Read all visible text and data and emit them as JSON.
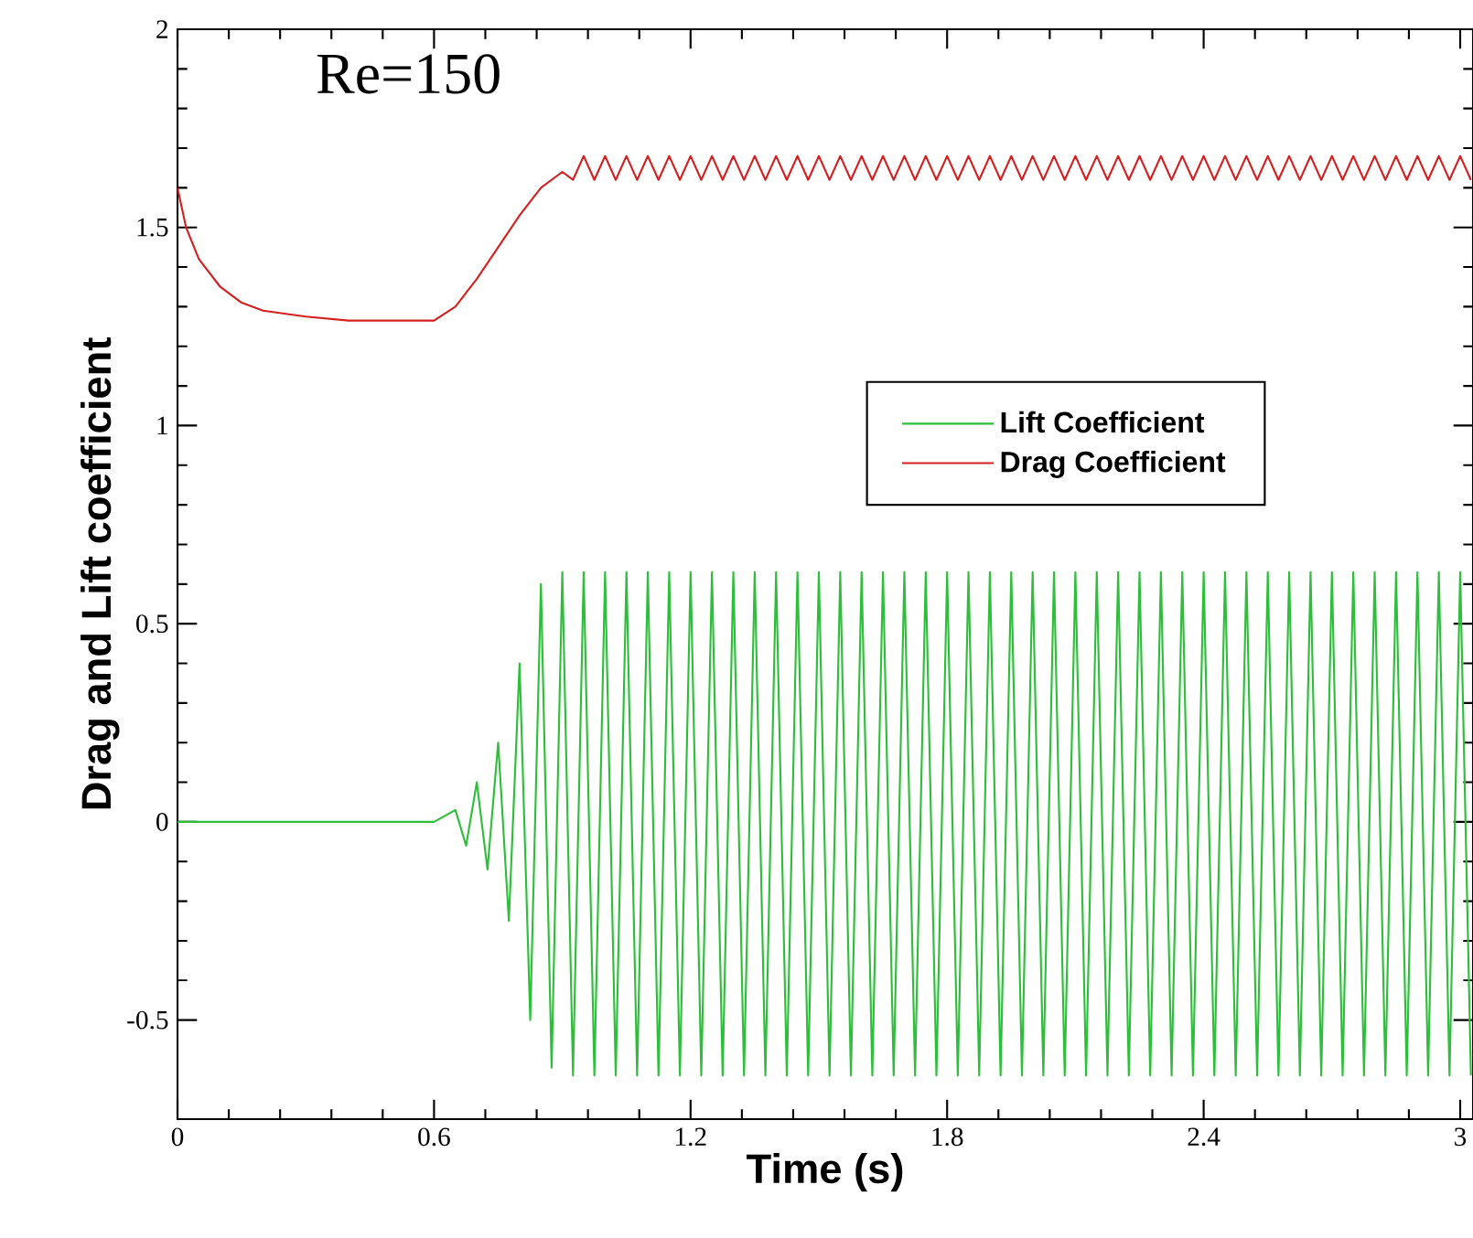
{
  "chart_data": {
    "type": "line",
    "xlabel": "Time (s)",
    "ylabel": "Drag and Lift coefficient",
    "annotations": [
      "Re=150"
    ],
    "xlim": [
      0,
      3.03
    ],
    "ylim": [
      -0.75,
      2
    ],
    "xticks": [
      0,
      0.6,
      1.2,
      1.8,
      2.4,
      3
    ],
    "yticks": [
      -0.5,
      0,
      0.5,
      1,
      1.5,
      2
    ],
    "legend": "right",
    "grid": false,
    "marker": "none",
    "line_style": "solid",
    "series": [
      {
        "name": "Lift Coefficient",
        "color": "#2dbf3a",
        "x": [
          0,
          0.6,
          0.65,
          0.675,
          0.7,
          0.725,
          0.75,
          0.775,
          0.8,
          0.825,
          0.85,
          0.875,
          0.9,
          0.925,
          0.95,
          0.975,
          1.0,
          1.025,
          1.05,
          1.075,
          1.1,
          1.125,
          1.15,
          1.175,
          1.2,
          1.225,
          1.25,
          1.275,
          1.3,
          1.325,
          1.35,
          1.375,
          1.4,
          1.425,
          1.45,
          1.475,
          1.5,
          1.525,
          1.55,
          1.575,
          1.6,
          1.625,
          1.65,
          1.675,
          1.7,
          1.725,
          1.75,
          1.775,
          1.8,
          1.825,
          1.85,
          1.875,
          1.9,
          1.925,
          1.95,
          1.975,
          2.0,
          2.025,
          2.05,
          2.075,
          2.1,
          2.125,
          2.15,
          2.175,
          2.2,
          2.225,
          2.25,
          2.275,
          2.3,
          2.325,
          2.35,
          2.375,
          2.4,
          2.425,
          2.45,
          2.475,
          2.5,
          2.525,
          2.55,
          2.575,
          2.6,
          2.625,
          2.65,
          2.675,
          2.7,
          2.725,
          2.75,
          2.775,
          2.8,
          2.825,
          2.85,
          2.875,
          2.9,
          2.925,
          2.95,
          2.975,
          3.0,
          3.025
        ],
        "values": [
          0,
          0,
          0.03,
          -0.06,
          0.1,
          -0.12,
          0.2,
          -0.25,
          0.4,
          -0.5,
          0.6,
          -0.62,
          0.63,
          -0.64,
          0.63,
          -0.64,
          0.63,
          -0.64,
          0.63,
          -0.64,
          0.63,
          -0.64,
          0.63,
          -0.64,
          0.63,
          -0.64,
          0.63,
          -0.64,
          0.63,
          -0.64,
          0.63,
          -0.64,
          0.63,
          -0.64,
          0.63,
          -0.64,
          0.63,
          -0.64,
          0.63,
          -0.64,
          0.63,
          -0.64,
          0.63,
          -0.64,
          0.63,
          -0.64,
          0.63,
          -0.64,
          0.63,
          -0.64,
          0.63,
          -0.64,
          0.63,
          -0.64,
          0.63,
          -0.64,
          0.63,
          -0.64,
          0.63,
          -0.64,
          0.63,
          -0.64,
          0.63,
          -0.64,
          0.63,
          -0.64,
          0.63,
          -0.64,
          0.63,
          -0.64,
          0.63,
          -0.64,
          0.63,
          -0.64,
          0.63,
          -0.64,
          0.63,
          -0.64,
          0.63,
          -0.64,
          0.63,
          -0.64,
          0.63,
          -0.64,
          0.63,
          -0.64,
          0.63,
          -0.64,
          0.63,
          -0.64,
          0.63,
          -0.64,
          0.63,
          -0.64,
          0.63,
          -0.64,
          0.63,
          -0.64
        ]
      },
      {
        "name": "Drag Coefficient",
        "color": "#d42020",
        "x": [
          0,
          0.02,
          0.05,
          0.1,
          0.15,
          0.2,
          0.3,
          0.4,
          0.5,
          0.6,
          0.65,
          0.7,
          0.75,
          0.8,
          0.85,
          0.9,
          0.925,
          0.95,
          0.975,
          1.0,
          1.025,
          1.05,
          1.075,
          1.1,
          1.125,
          1.15,
          1.175,
          1.2,
          1.225,
          1.25,
          1.275,
          1.3,
          1.325,
          1.35,
          1.375,
          1.4,
          1.425,
          1.45,
          1.475,
          1.5,
          1.525,
          1.55,
          1.575,
          1.6,
          1.625,
          1.65,
          1.675,
          1.7,
          1.725,
          1.75,
          1.775,
          1.8,
          1.825,
          1.85,
          1.875,
          1.9,
          1.925,
          1.95,
          1.975,
          2.0,
          2.025,
          2.05,
          2.075,
          2.1,
          2.125,
          2.15,
          2.175,
          2.2,
          2.225,
          2.25,
          2.275,
          2.3,
          2.325,
          2.35,
          2.375,
          2.4,
          2.425,
          2.45,
          2.475,
          2.5,
          2.525,
          2.55,
          2.575,
          2.6,
          2.625,
          2.65,
          2.675,
          2.7,
          2.725,
          2.75,
          2.775,
          2.8,
          2.825,
          2.85,
          2.875,
          2.9,
          2.925,
          2.95,
          2.975,
          3.0,
          3.025
        ],
        "values": [
          1.6,
          1.5,
          1.42,
          1.35,
          1.31,
          1.29,
          1.275,
          1.265,
          1.265,
          1.265,
          1.3,
          1.37,
          1.45,
          1.53,
          1.6,
          1.64,
          1.62,
          1.68,
          1.62,
          1.68,
          1.62,
          1.68,
          1.62,
          1.68,
          1.62,
          1.68,
          1.62,
          1.68,
          1.62,
          1.68,
          1.62,
          1.68,
          1.62,
          1.68,
          1.62,
          1.68,
          1.62,
          1.68,
          1.62,
          1.68,
          1.62,
          1.68,
          1.62,
          1.68,
          1.62,
          1.68,
          1.62,
          1.68,
          1.62,
          1.68,
          1.62,
          1.68,
          1.62,
          1.68,
          1.62,
          1.68,
          1.62,
          1.68,
          1.62,
          1.68,
          1.62,
          1.68,
          1.62,
          1.68,
          1.62,
          1.68,
          1.62,
          1.68,
          1.62,
          1.68,
          1.62,
          1.68,
          1.62,
          1.68,
          1.62,
          1.68,
          1.62,
          1.68,
          1.62,
          1.68,
          1.62,
          1.68,
          1.62,
          1.68,
          1.62,
          1.68,
          1.62,
          1.68,
          1.62,
          1.68,
          1.62,
          1.68,
          1.62,
          1.68,
          1.62,
          1.68,
          1.62,
          1.68,
          1.62,
          1.68,
          1.62
        ]
      }
    ]
  }
}
